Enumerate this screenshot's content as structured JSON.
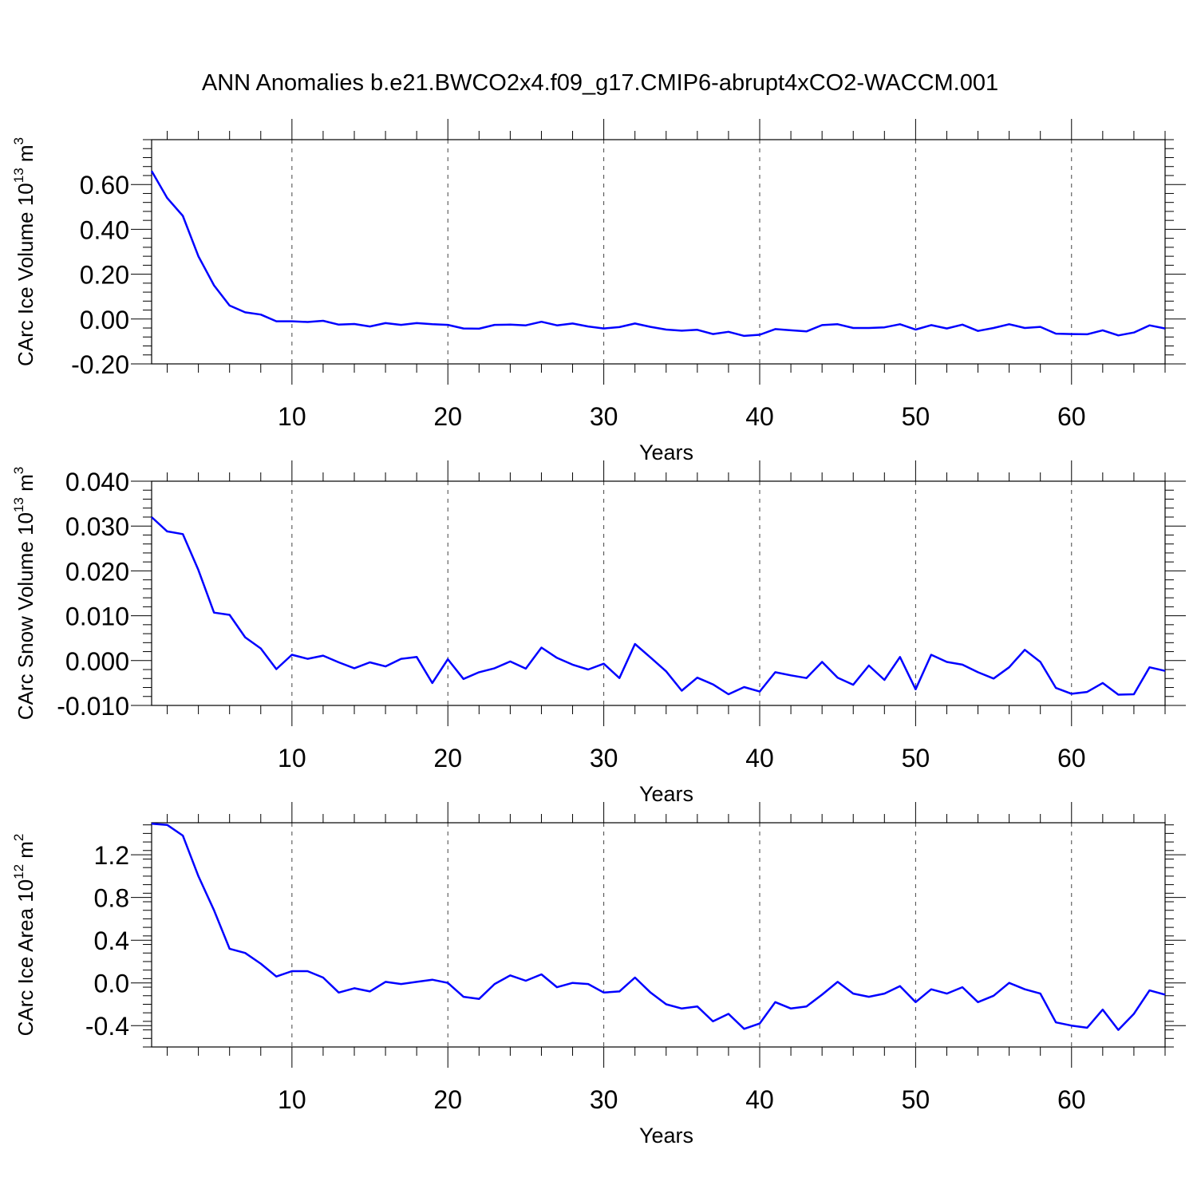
{
  "figure_title": "ANN Anomalies b.e21.BWCO2x4.f09_g17.CMIP6-abrupt4xCO2-WACCM.001",
  "line_color": "#0000ff",
  "chart_data": [
    {
      "type": "line",
      "title": "",
      "xlabel": "Years",
      "ylabel": {
        "base": "CArc Ice Volume 10",
        "exponent": "13",
        "unit": " m",
        "unit_exponent": "3"
      },
      "xlim": [
        1,
        66
      ],
      "ylim": [
        -0.2,
        0.8
      ],
      "xticks": [
        10,
        20,
        30,
        40,
        50,
        60
      ],
      "yticks": [
        -0.2,
        0.0,
        0.2,
        0.4,
        0.6
      ],
      "ytick_labels": [
        "-0.20",
        "0.00",
        "0.20",
        "0.40",
        "0.60"
      ],
      "grid": "vertical dashed at major x ticks",
      "x": [
        1,
        2,
        3,
        4,
        5,
        6,
        7,
        8,
        9,
        10,
        11,
        12,
        13,
        14,
        15,
        16,
        17,
        18,
        19,
        20,
        21,
        22,
        23,
        24,
        25,
        26,
        27,
        28,
        29,
        30,
        31,
        32,
        33,
        34,
        35,
        36,
        37,
        38,
        39,
        40,
        41,
        42,
        43,
        44,
        45,
        46,
        47,
        48,
        49,
        50,
        51,
        52,
        53,
        54,
        55,
        56,
        57,
        58,
        59,
        60,
        61,
        62,
        63,
        64,
        65,
        66
      ],
      "y": [
        0.66,
        0.54,
        0.46,
        0.28,
        0.15,
        0.06,
        0.03,
        0.02,
        -0.01,
        -0.01,
        -0.013,
        -0.008,
        -0.025,
        -0.022,
        -0.033,
        -0.018,
        -0.026,
        -0.018,
        -0.023,
        -0.026,
        -0.042,
        -0.043,
        -0.026,
        -0.025,
        -0.028,
        -0.012,
        -0.028,
        -0.02,
        -0.033,
        -0.042,
        -0.036,
        -0.02,
        -0.035,
        -0.047,
        -0.052,
        -0.048,
        -0.067,
        -0.057,
        -0.075,
        -0.07,
        -0.045,
        -0.05,
        -0.055,
        -0.027,
        -0.023,
        -0.04,
        -0.04,
        -0.037,
        -0.023,
        -0.047,
        -0.027,
        -0.042,
        -0.025,
        -0.053,
        -0.04,
        -0.023,
        -0.04,
        -0.035,
        -0.065,
        -0.067,
        -0.068,
        -0.05,
        -0.073,
        -0.06,
        -0.028,
        -0.042
      ]
    },
    {
      "type": "line",
      "title": "",
      "xlabel": "Years",
      "ylabel": {
        "base": "CArc Snow Volume 10",
        "exponent": "13",
        "unit": " m",
        "unit_exponent": "3"
      },
      "xlim": [
        1,
        66
      ],
      "ylim": [
        -0.01,
        0.04
      ],
      "xticks": [
        10,
        20,
        30,
        40,
        50,
        60
      ],
      "yticks": [
        -0.01,
        0.0,
        0.01,
        0.02,
        0.03,
        0.04
      ],
      "ytick_labels": [
        "-0.010",
        "0.000",
        "0.010",
        "0.020",
        "0.030",
        "0.040"
      ],
      "grid": "vertical dashed at major x ticks",
      "x": [
        1,
        2,
        3,
        4,
        5,
        6,
        7,
        8,
        9,
        10,
        11,
        12,
        13,
        14,
        15,
        16,
        17,
        18,
        19,
        20,
        21,
        22,
        23,
        24,
        25,
        26,
        27,
        28,
        29,
        30,
        31,
        32,
        33,
        34,
        35,
        36,
        37,
        38,
        39,
        40,
        41,
        42,
        43,
        44,
        45,
        46,
        47,
        48,
        49,
        50,
        51,
        52,
        53,
        54,
        55,
        56,
        57,
        58,
        59,
        60,
        61,
        62,
        63,
        64,
        65,
        66
      ],
      "y": [
        0.032,
        0.0288,
        0.0282,
        0.0202,
        0.0107,
        0.0102,
        0.0052,
        0.0027,
        -0.0019,
        0.0013,
        0.0004,
        0.0011,
        -0.0004,
        -0.0017,
        -0.0004,
        -0.0013,
        0.0004,
        0.0008,
        -0.005,
        0.0003,
        -0.0041,
        -0.0026,
        -0.0017,
        -0.0002,
        -0.0018,
        0.0029,
        0.0006,
        -0.0009,
        -0.002,
        -0.0007,
        -0.0039,
        0.0037,
        0.0007,
        -0.0024,
        -0.0067,
        -0.0038,
        -0.0053,
        -0.0075,
        -0.0059,
        -0.0069,
        -0.0026,
        -0.0033,
        -0.0039,
        -0.0003,
        -0.0038,
        -0.0054,
        -0.0011,
        -0.0043,
        0.0008,
        -0.0064,
        0.0013,
        -0.0003,
        -0.0009,
        -0.0026,
        -0.004,
        -0.0015,
        0.0024,
        -0.0003,
        -0.0061,
        -0.0074,
        -0.007,
        -0.005,
        -0.0076,
        -0.0075,
        -0.0015,
        -0.0023
      ]
    },
    {
      "type": "line",
      "title": "",
      "xlabel": "Years",
      "ylabel": {
        "base": "CArc Ice Area 10",
        "exponent": "12",
        "unit": " m",
        "unit_exponent": "2"
      },
      "xlim": [
        1,
        66
      ],
      "ylim": [
        -0.6,
        1.5
      ],
      "xticks": [
        10,
        20,
        30,
        40,
        50,
        60
      ],
      "yticks": [
        -0.4,
        0.0,
        0.4,
        0.8,
        1.2
      ],
      "ytick_labels": [
        "-0.4",
        "0.0",
        "0.4",
        "0.8",
        "1.2"
      ],
      "grid": "vertical dashed at major x ticks",
      "x": [
        1,
        2,
        3,
        4,
        5,
        6,
        7,
        8,
        9,
        10,
        11,
        12,
        13,
        14,
        15,
        16,
        17,
        18,
        19,
        20,
        21,
        22,
        23,
        24,
        25,
        26,
        27,
        28,
        29,
        30,
        31,
        32,
        33,
        34,
        35,
        36,
        37,
        38,
        39,
        40,
        41,
        42,
        43,
        44,
        45,
        46,
        47,
        48,
        49,
        50,
        51,
        52,
        53,
        54,
        55,
        56,
        57,
        58,
        59,
        60,
        61,
        62,
        63,
        64,
        65,
        66
      ],
      "y": [
        1.49,
        1.48,
        1.38,
        1.0,
        0.68,
        0.32,
        0.28,
        0.18,
        0.06,
        0.11,
        0.11,
        0.05,
        -0.09,
        -0.05,
        -0.08,
        0.01,
        -0.01,
        0.01,
        0.03,
        0.0,
        -0.13,
        -0.15,
        -0.01,
        0.07,
        0.02,
        0.08,
        -0.04,
        0.0,
        -0.01,
        -0.09,
        -0.08,
        0.05,
        -0.09,
        -0.2,
        -0.24,
        -0.22,
        -0.36,
        -0.29,
        -0.43,
        -0.38,
        -0.18,
        -0.24,
        -0.22,
        -0.11,
        0.01,
        -0.1,
        -0.13,
        -0.1,
        -0.03,
        -0.18,
        -0.06,
        -0.1,
        -0.04,
        -0.18,
        -0.12,
        0.0,
        -0.06,
        -0.1,
        -0.37,
        -0.4,
        -0.42,
        -0.25,
        -0.44,
        -0.29,
        -0.07,
        -0.11
      ]
    }
  ]
}
